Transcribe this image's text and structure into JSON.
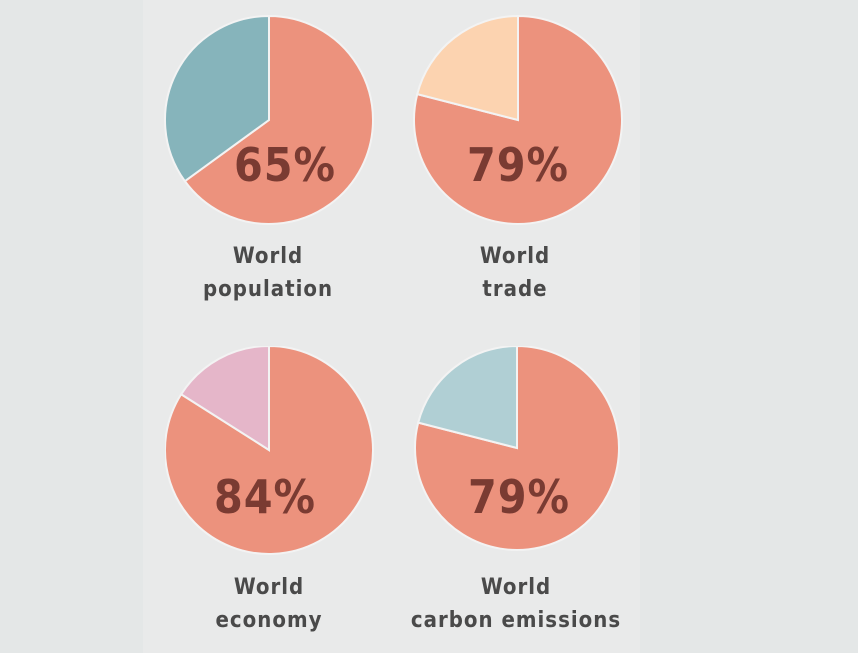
{
  "chart_data": [
    {
      "type": "pie",
      "labels": [
        "World",
        "population"
      ],
      "value_label": "65%",
      "slices": [
        {
          "value": 65,
          "color": "#ec927d"
        },
        {
          "value": 35,
          "color": "#86b4bb"
        }
      ]
    },
    {
      "type": "pie",
      "labels": [
        "World",
        "trade"
      ],
      "value_label": "79%",
      "slices": [
        {
          "value": 79,
          "color": "#ec927d"
        },
        {
          "value": 21,
          "color": "#fcd3b0"
        }
      ]
    },
    {
      "type": "pie",
      "labels": [
        "World",
        "economy"
      ],
      "value_label": "84%",
      "slices": [
        {
          "value": 84,
          "color": "#ec927d"
        },
        {
          "value": 16,
          "color": "#e5b6c9"
        }
      ]
    },
    {
      "type": "pie",
      "labels": [
        "World",
        "carbon emissions"
      ],
      "value_label": "79%",
      "slices": [
        {
          "value": 79,
          "color": "#ec927d"
        },
        {
          "value": 21,
          "color": "#b0cfd4"
        }
      ]
    }
  ]
}
